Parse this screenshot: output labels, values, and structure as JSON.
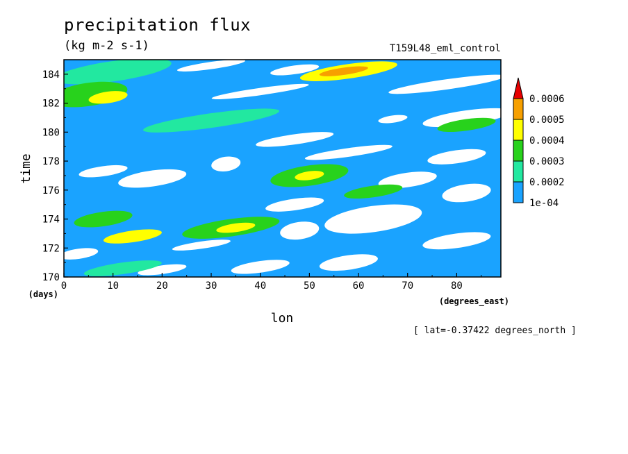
{
  "header": {
    "title": "precipitation flux",
    "units": "(kg m-2 s-1)",
    "run_name": "T159L48_eml_control",
    "lat_note": "[ lat=-0.37422 degrees_north ]"
  },
  "colors": {
    "white": "#ffffff",
    "blue": "#1aa3ff",
    "cyan": "#22e8a0",
    "green": "#28d21c",
    "yellow": "#ffff00",
    "orange": "#f7a000",
    "red": "#e60000"
  },
  "chart_data": {
    "type": "heatmap",
    "title": "precipitation flux",
    "subtitle": "(kg m-2 s-1)",
    "xlabel": "lon",
    "xunits": "(degrees_east)",
    "ylabel": "time",
    "yunits": "(days)",
    "xlim": [
      0,
      89
    ],
    "ylim": [
      170,
      185
    ],
    "x_ticks": [
      "0",
      "10",
      "20",
      "30",
      "40",
      "50",
      "60",
      "70",
      "80"
    ],
    "y_ticks": [
      "170",
      "172",
      "174",
      "176",
      "178",
      "180",
      "182",
      "184"
    ],
    "colorbar": {
      "labels": [
        "1e-04",
        "0.0002",
        "0.0003",
        "0.0004",
        "0.0005",
        "0.0006"
      ],
      "levels": [
        0.0001,
        0.0002,
        0.0003,
        0.0004,
        0.0005,
        0.0006
      ],
      "colors": [
        "#1aa3ff",
        "#22e8a0",
        "#28d21c",
        "#ffff00",
        "#f7a000",
        "#e60000"
      ],
      "extend": "max"
    },
    "dry_patches": [
      {
        "lon": 30,
        "time": 184.6,
        "rlon": 7,
        "rt": 0.25,
        "v": 0
      },
      {
        "lon": 47,
        "time": 184.3,
        "rlon": 5,
        "rt": 0.3,
        "v": 0
      },
      {
        "lon": 78,
        "time": 183.3,
        "rlon": 12,
        "rt": 0.35,
        "v": 0
      },
      {
        "lon": 40,
        "time": 182.8,
        "rlon": 10,
        "rt": 0.25,
        "v": 0
      },
      {
        "lon": 82,
        "time": 181.0,
        "rlon": 9,
        "rt": 0.5,
        "v": 0
      },
      {
        "lon": 67,
        "time": 180.9,
        "rlon": 3,
        "rt": 0.25,
        "v": 0
      },
      {
        "lon": 47,
        "time": 179.5,
        "rlon": 8,
        "rt": 0.35,
        "v": 0
      },
      {
        "lon": 58,
        "time": 178.6,
        "rlon": 9,
        "rt": 0.3,
        "v": 0
      },
      {
        "lon": 80,
        "time": 178.3,
        "rlon": 6,
        "rt": 0.45,
        "v": 0
      },
      {
        "lon": 33,
        "time": 177.8,
        "rlon": 3,
        "rt": 0.5,
        "v": 0
      },
      {
        "lon": 8,
        "time": 177.3,
        "rlon": 5,
        "rt": 0.35,
        "v": 0
      },
      {
        "lon": 18,
        "time": 176.8,
        "rlon": 7,
        "rt": 0.55,
        "v": 0
      },
      {
        "lon": 70,
        "time": 176.7,
        "rlon": 6,
        "rt": 0.5,
        "v": 0
      },
      {
        "lon": 82,
        "time": 175.8,
        "rlon": 5,
        "rt": 0.6,
        "v": 0
      },
      {
        "lon": 47,
        "time": 175.0,
        "rlon": 6,
        "rt": 0.4,
        "v": 0
      },
      {
        "lon": 63,
        "time": 174.0,
        "rlon": 10,
        "rt": 0.9,
        "v": 0
      },
      {
        "lon": 48,
        "time": 173.2,
        "rlon": 4,
        "rt": 0.6,
        "v": 0
      },
      {
        "lon": 80,
        "time": 172.5,
        "rlon": 7,
        "rt": 0.5,
        "v": 0
      },
      {
        "lon": 28,
        "time": 172.2,
        "rlon": 6,
        "rt": 0.25,
        "v": 0
      },
      {
        "lon": 3,
        "time": 171.6,
        "rlon": 4,
        "rt": 0.35,
        "v": 0
      },
      {
        "lon": 58,
        "time": 171.0,
        "rlon": 6,
        "rt": 0.5,
        "v": 0
      },
      {
        "lon": 40,
        "time": 170.7,
        "rlon": 6,
        "rt": 0.4,
        "v": 0
      },
      {
        "lon": 20,
        "time": 170.5,
        "rlon": 5,
        "rt": 0.3,
        "v": 0
      }
    ],
    "wet_bands": [
      {
        "lon": 10,
        "time": 184.2,
        "rlon": 12,
        "rt": 0.7,
        "v": 0.00025
      },
      {
        "lon": 58,
        "time": 184.2,
        "rlon": 10,
        "rt": 0.5,
        "v": 0.0004
      },
      {
        "lon": 57,
        "time": 184.2,
        "rlon": 5,
        "rt": 0.25,
        "v": 0.00055
      },
      {
        "lon": 5,
        "time": 182.6,
        "rlon": 8,
        "rt": 0.8,
        "v": 0.00035
      },
      {
        "lon": 9,
        "time": 182.4,
        "rlon": 4,
        "rt": 0.4,
        "v": 0.00045
      },
      {
        "lon": 30,
        "time": 180.8,
        "rlon": 14,
        "rt": 0.5,
        "v": 0.00025
      },
      {
        "lon": 82,
        "time": 180.5,
        "rlon": 6,
        "rt": 0.4,
        "v": 0.00035
      },
      {
        "lon": 50,
        "time": 177.0,
        "rlon": 8,
        "rt": 0.7,
        "v": 0.0003
      },
      {
        "lon": 50,
        "time": 177.0,
        "rlon": 3,
        "rt": 0.3,
        "v": 0.00045
      },
      {
        "lon": 63,
        "time": 175.9,
        "rlon": 6,
        "rt": 0.4,
        "v": 0.00035
      },
      {
        "lon": 8,
        "time": 174.0,
        "rlon": 6,
        "rt": 0.5,
        "v": 0.00035
      },
      {
        "lon": 14,
        "time": 172.8,
        "rlon": 6,
        "rt": 0.4,
        "v": 0.0004
      },
      {
        "lon": 34,
        "time": 173.4,
        "rlon": 10,
        "rt": 0.6,
        "v": 0.00035
      },
      {
        "lon": 35,
        "time": 173.4,
        "rlon": 4,
        "rt": 0.3,
        "v": 0.00045
      },
      {
        "lon": 12,
        "time": 170.6,
        "rlon": 8,
        "rt": 0.4,
        "v": 0.00025
      }
    ]
  }
}
